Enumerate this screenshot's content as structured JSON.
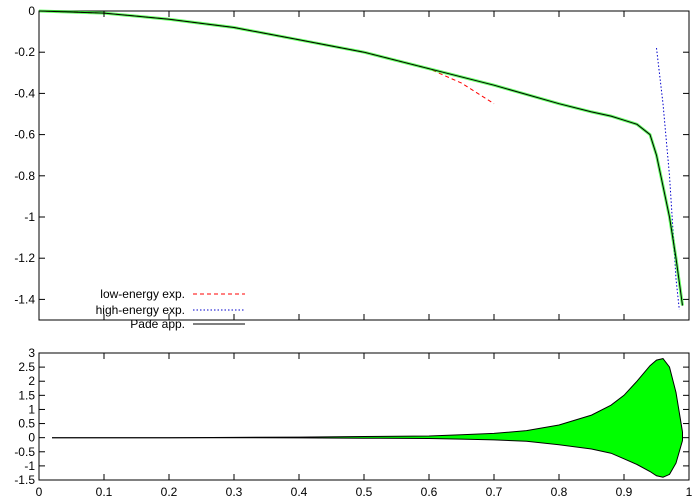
{
  "chart_data": [
    {
      "type": "line",
      "title": "",
      "xlabel": "",
      "ylabel": "",
      "xlim": [
        0,
        1
      ],
      "ylim": [
        -1.5,
        0
      ],
      "yticks": [
        "0",
        "-0.2",
        "-0.4",
        "-0.6",
        "-0.8",
        "-1",
        "-1.2",
        "-1.4"
      ],
      "legend_position": "bottom-left",
      "series": [
        {
          "name": "low-energy exp.",
          "color": "#ff0000",
          "style": "dashed",
          "x": [
            0.0,
            0.1,
            0.2,
            0.3,
            0.4,
            0.5,
            0.55,
            0.6,
            0.65,
            0.7
          ],
          "y": [
            0.0,
            -0.01,
            -0.04,
            -0.08,
            -0.14,
            -0.2,
            -0.24,
            -0.28,
            -0.35,
            -0.45
          ]
        },
        {
          "name": "high-energy exp.",
          "color": "#0000cc",
          "style": "dotted",
          "x": [
            0.95,
            0.96,
            0.97,
            0.975,
            0.98,
            0.985
          ],
          "y": [
            -0.18,
            -0.45,
            -0.8,
            -1.05,
            -1.3,
            -1.45
          ]
        },
        {
          "name": "Pade app.",
          "color": "#000000",
          "style": "solid",
          "x": [
            0.0,
            0.1,
            0.2,
            0.3,
            0.4,
            0.5,
            0.6,
            0.7,
            0.8,
            0.85,
            0.88,
            0.9,
            0.92,
            0.94,
            0.95,
            0.96,
            0.97,
            0.98,
            0.99
          ],
          "y": [
            0.0,
            -0.01,
            -0.04,
            -0.08,
            -0.14,
            -0.2,
            -0.28,
            -0.36,
            -0.45,
            -0.49,
            -0.51,
            -0.53,
            -0.55,
            -0.6,
            -0.7,
            -0.85,
            -1.0,
            -1.2,
            -1.43
          ]
        }
      ]
    },
    {
      "type": "area",
      "title": "",
      "xlabel": "",
      "ylabel": "",
      "xlim": [
        0,
        1
      ],
      "ylim": [
        -1.5,
        3
      ],
      "yticks": [
        "3",
        "2.5",
        "2",
        "1.5",
        "1",
        "0.5",
        "0",
        "-0.5",
        "-1",
        "-1.5"
      ],
      "xticks": [
        "0",
        "0.1",
        "0.2",
        "0.3",
        "0.4",
        "0.5",
        "0.6",
        "0.7",
        "0.8",
        "0.9",
        "1"
      ],
      "series": [
        {
          "color": "#00ff00",
          "x": [
            0.02,
            0.1,
            0.2,
            0.3,
            0.4,
            0.5,
            0.6,
            0.65,
            0.7,
            0.75,
            0.8,
            0.85,
            0.88,
            0.9,
            0.92,
            0.94,
            0.95,
            0.96,
            0.97,
            0.98,
            0.99
          ],
          "upper": [
            0.0,
            0.0,
            0.0,
            0.01,
            0.02,
            0.04,
            0.06,
            0.1,
            0.15,
            0.25,
            0.45,
            0.8,
            1.15,
            1.5,
            2.0,
            2.55,
            2.75,
            2.8,
            2.5,
            1.6,
            0.2
          ],
          "lower": [
            0.0,
            0.0,
            0.0,
            0.0,
            -0.01,
            -0.02,
            -0.03,
            -0.05,
            -0.08,
            -0.13,
            -0.25,
            -0.4,
            -0.55,
            -0.75,
            -0.95,
            -1.2,
            -1.35,
            -1.4,
            -1.3,
            -0.9,
            -0.1
          ]
        }
      ]
    }
  ]
}
